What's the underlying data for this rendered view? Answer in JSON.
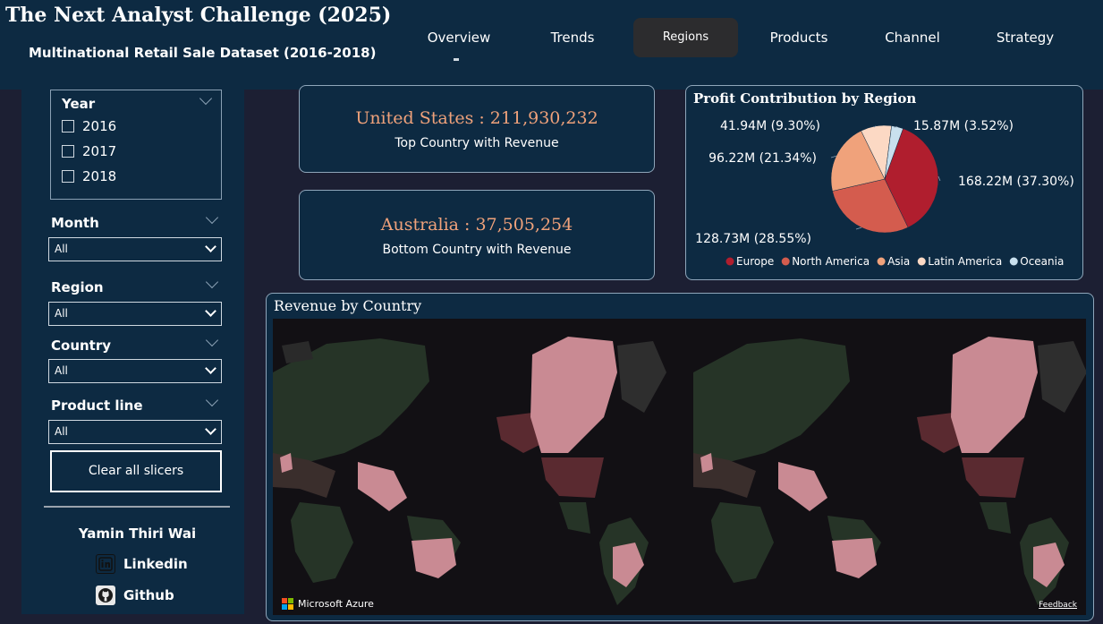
{
  "header": {
    "title": "The Next Analyst Challenge (2025)",
    "subtitle": "Multinational Retail Sale Dataset (2016-2018)",
    "nav": [
      "Overview",
      "Trends",
      "Regions",
      "Products",
      "Channel",
      "Strategy"
    ],
    "active_nav": "Regions"
  },
  "filters": {
    "year": {
      "title": "Year",
      "options": [
        "2016",
        "2017",
        "2018"
      ]
    },
    "month": {
      "title": "Month",
      "value": "All"
    },
    "region": {
      "title": "Region",
      "value": "All"
    },
    "country": {
      "title": "Country",
      "value": "All"
    },
    "product_line": {
      "title": "Product line",
      "value": "All"
    },
    "clear_label": "Clear all slicers"
  },
  "author": {
    "name": "Yamin Thiri Wai",
    "linkedin": "Linkedin",
    "github": "Github",
    "linkedin_icon": "linkedin-icon",
    "github_icon": "github-icon"
  },
  "kpis": {
    "top": {
      "value": "United States : 211,930,232",
      "label": "Top Country with Revenue"
    },
    "bottom": {
      "value": "Australia : 37,505,254",
      "label": "Bottom Country with Revenue"
    }
  },
  "pie": {
    "title": "Profit Contribution by Region",
    "legend": [
      "Europe",
      "North America",
      "Asia",
      "Latin America",
      "Oceania"
    ]
  },
  "chart_data": {
    "type": "pie",
    "title": "Profit Contribution by Region",
    "slices": [
      {
        "name": "Europe",
        "value": 168.22,
        "label": "168.22M (37.30%)",
        "color": "#b01e2e"
      },
      {
        "name": "North America",
        "value": 128.73,
        "label": "128.73M (28.55%)",
        "color": "#d45c4e"
      },
      {
        "name": "Asia",
        "value": 96.22,
        "label": "96.22M (21.34%)",
        "color": "#f0a27b"
      },
      {
        "name": "Latin America",
        "value": 41.94,
        "label": "41.94M (9.30%)",
        "color": "#fcd9c4"
      },
      {
        "name": "Oceania",
        "value": 15.87,
        "label": "15.87M (3.52%)",
        "color": "#c9e0ee"
      }
    ],
    "legend_position": "bottom"
  },
  "map": {
    "title": "Revenue by Country",
    "attribution": "Microsoft Azure",
    "feedback": "Feedback"
  },
  "colors": {
    "header_bg": "#0d2a42",
    "page_bg": "#1c1f33",
    "kpi_value": "#f0a27b",
    "map_land_low": "#263427",
    "map_land_high": "#c98a93"
  }
}
